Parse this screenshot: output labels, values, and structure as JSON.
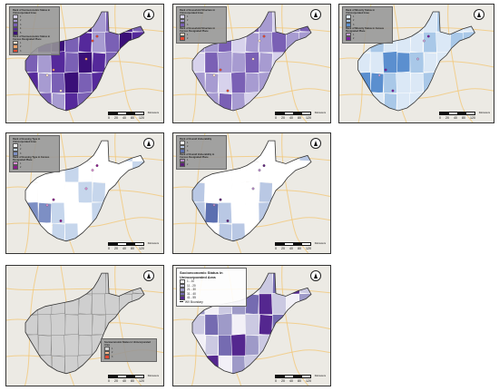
{
  "scale": {
    "ticks": [
      "0",
      "20",
      "40",
      "80",
      "120"
    ],
    "unit": "Kilometers"
  },
  "north_icon": "north-arrow-icon",
  "colors": {
    "basemap": "#eceae4",
    "road": "#f4c36b",
    "state_outline": "#333333",
    "county_line": "#ffffff"
  },
  "panels": [
    {
      "id": "map-1",
      "legend": {
        "title": "Rank of Socioeconomic Status in Unincorporated Area",
        "items": [
          {
            "label": "1",
            "color": "#d7d2ec"
          },
          {
            "label": "2",
            "color": "#a79bd1"
          },
          {
            "label": "3",
            "color": "#7a60b5"
          },
          {
            "label": "4",
            "color": "#55299b"
          },
          {
            "label": "5",
            "color": "#3a0f78"
          }
        ],
        "subtitle": "Rank of Socioeconomic Status in Census Designated Place",
        "subitems": [
          {
            "label": "1",
            "color": "#fde3c9"
          },
          {
            "label": "2",
            "color": "#fca46a"
          },
          {
            "label": "3",
            "color": "#e34a33"
          }
        ]
      }
    },
    {
      "id": "map-2",
      "legend": {
        "title": "Rank of Household Structure in Unincorporated Area",
        "items": [
          {
            "label": "1",
            "color": "#d7d2ec"
          },
          {
            "label": "2",
            "color": "#a79bd1"
          },
          {
            "label": "3",
            "color": "#7a60b5"
          }
        ],
        "subtitle": "Rank of Household Structure in Census Designated Place",
        "subitems": [
          {
            "label": "1",
            "color": "#fde3c9"
          },
          {
            "label": "2",
            "color": "#e34a33"
          }
        ]
      }
    },
    {
      "id": "map-3",
      "legend": {
        "title": "Rank of Minority Status in Unincorporated Area",
        "items": [
          {
            "label": "1",
            "color": "#dbe8f6"
          },
          {
            "label": "2",
            "color": "#a9c8e8"
          },
          {
            "label": "3",
            "color": "#5b8fcf"
          }
        ],
        "subtitle": "Rank of Minority Status in Census Designated Place",
        "subitems": [
          {
            "label": "1",
            "color": "#c7a2d8"
          },
          {
            "label": "2",
            "color": "#7a1fa0"
          }
        ]
      }
    },
    {
      "id": "map-4",
      "legend": {
        "title": "Rank of Housing Type in Unincorporated Area",
        "items": [
          {
            "label": "1",
            "color": "#ffffff"
          },
          {
            "label": "2",
            "color": "#c6d6ec"
          },
          {
            "label": "3",
            "color": "#7d8fc4"
          }
        ],
        "subtitle": "Rank of Housing Type in Census Designated Place",
        "subitems": [
          {
            "label": "1",
            "color": "#d78fd0"
          },
          {
            "label": "2",
            "color": "#8a1a8a"
          }
        ]
      }
    },
    {
      "id": "map-5",
      "legend": {
        "title": "Rank of Overall Vulnerability",
        "items": [
          {
            "label": "1",
            "color": "#ffffff"
          },
          {
            "label": "2",
            "color": "#b9c8e4"
          },
          {
            "label": "3",
            "color": "#5b6fb0"
          }
        ],
        "subtitle": "Rank of Overall Vulnerability in Census Designated Place",
        "subitems": [
          {
            "label": "1",
            "color": "#b68bc8"
          },
          {
            "label": "2",
            "color": "#5d1f7a"
          }
        ]
      }
    },
    {
      "id": "map-6",
      "legend": {
        "title": "Socioeconomic Status in Unincorporated Area",
        "items": [
          {
            "label": "1",
            "color": "#cfcfcf"
          },
          {
            "label": "2",
            "color": "#f3b58a"
          },
          {
            "label": "3",
            "color": "#e34a33"
          }
        ],
        "subtitle": "",
        "subitems": []
      }
    },
    {
      "id": "map-7",
      "legend": {
        "title": "Socioeconomic Status in Unincorporated Area",
        "items": [
          {
            "label": "1 - 10",
            "color": "#f2f0f7"
          },
          {
            "label": "11 - 20",
            "color": "#cbc9e2"
          },
          {
            "label": "21 - 30",
            "color": "#9e9ac8"
          },
          {
            "label": "31 - 40",
            "color": "#756bb1"
          },
          {
            "label": "41 - 55",
            "color": "#54278f"
          }
        ],
        "subtitle": "",
        "subitems": [],
        "boundary_label": "WV Boundary"
      }
    }
  ]
}
